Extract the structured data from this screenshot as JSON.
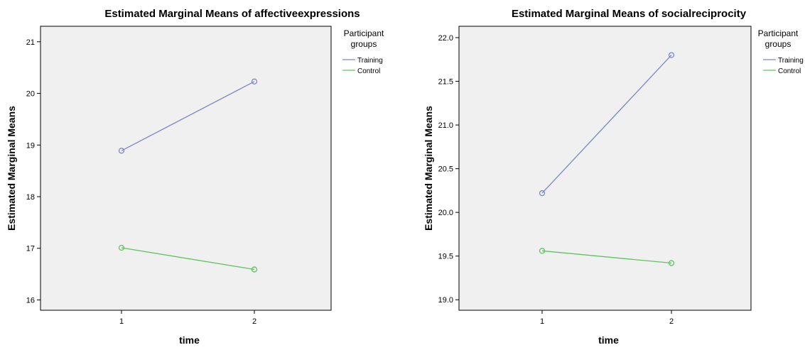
{
  "chart_data": [
    {
      "type": "line",
      "title": "Estimated Marginal Means of affectiveexpressions",
      "xlabel": "time",
      "ylabel": "Estimated Marginal Means",
      "categories": [
        "1",
        "2"
      ],
      "ylim": [
        15.8,
        21.3
      ],
      "yticks": [
        "16",
        "17",
        "18",
        "19",
        "20",
        "21"
      ],
      "legend_title": [
        "Participant",
        "groups"
      ],
      "series": [
        {
          "name": "Training",
          "color": "#7b86c8",
          "values": [
            18.89,
            20.23
          ]
        },
        {
          "name": "Control",
          "color": "#5ec45e",
          "values": [
            17.01,
            16.59
          ]
        }
      ]
    },
    {
      "type": "line",
      "title": "Estimated Marginal Means of socialreciprocity",
      "xlabel": "time",
      "ylabel": "Estimated Marginal Means",
      "categories": [
        "1",
        "2"
      ],
      "ylim": [
        18.88,
        22.13
      ],
      "yticks": [
        "19.0",
        "19.5",
        "20.0",
        "20.5",
        "21.0",
        "21.5",
        "22.0"
      ],
      "legend_title": [
        "Participant",
        "groups"
      ],
      "series": [
        {
          "name": "Training",
          "color": "#7b86c8",
          "values": [
            20.22,
            21.8
          ]
        },
        {
          "name": "Control",
          "color": "#5ec45e",
          "values": [
            19.56,
            19.42
          ]
        }
      ]
    }
  ]
}
